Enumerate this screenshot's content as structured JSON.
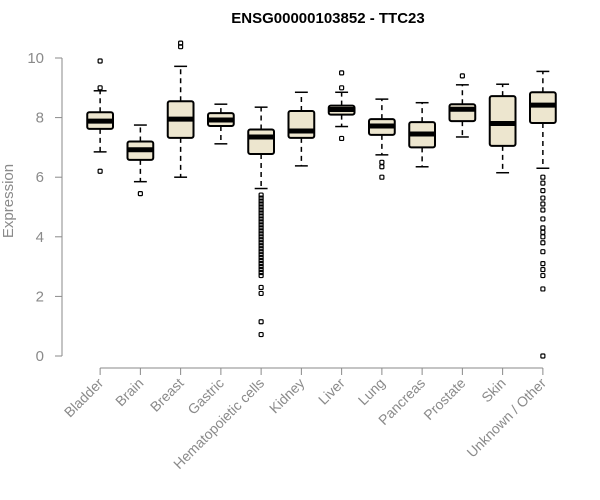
{
  "chart_data": {
    "type": "boxplot",
    "title": "ENSG00000103852 - TTC23",
    "xlabel": "",
    "ylabel": "Expression",
    "ylim": [
      0,
      10
    ],
    "yticks": [
      0,
      2,
      4,
      6,
      8,
      10
    ],
    "categories": [
      "Bladder",
      "Brain",
      "Breast",
      "Gastric",
      "Hematopoietic cells",
      "Kidney",
      "Liver",
      "Lung",
      "Pancreas",
      "Prostate",
      "Skin",
      "Unknown / Other"
    ],
    "boxes": [
      {
        "name": "Bladder",
        "min": 6.85,
        "q1": 7.62,
        "median": 7.88,
        "q3": 8.18,
        "max": 8.9,
        "outliers": [
          9.9,
          9.0,
          6.2
        ]
      },
      {
        "name": "Brain",
        "min": 5.85,
        "q1": 6.58,
        "median": 6.92,
        "q3": 7.2,
        "max": 7.75,
        "outliers": [
          5.45
        ]
      },
      {
        "name": "Breast",
        "min": 6.0,
        "q1": 7.32,
        "median": 7.95,
        "q3": 8.55,
        "max": 9.72,
        "outliers": [
          10.5,
          10.38
        ]
      },
      {
        "name": "Gastric",
        "min": 7.12,
        "q1": 7.72,
        "median": 7.92,
        "q3": 8.15,
        "max": 8.45,
        "outliers": []
      },
      {
        "name": "Hematopoietic cells",
        "min": 5.62,
        "q1": 6.78,
        "median": 7.35,
        "q3": 7.6,
        "max": 8.35,
        "outliers": [
          5.4,
          5.3,
          5.2,
          5.1,
          5.0,
          4.9,
          4.8,
          4.7,
          4.6,
          4.5,
          4.4,
          4.3,
          4.2,
          4.1,
          4.0,
          3.9,
          3.8,
          3.7,
          3.6,
          3.5,
          3.4,
          3.3,
          3.2,
          3.1,
          3.0,
          2.9,
          2.8,
          2.7,
          2.3,
          2.1,
          1.15,
          0.72
        ]
      },
      {
        "name": "Kidney",
        "min": 6.38,
        "q1": 7.32,
        "median": 7.55,
        "q3": 8.22,
        "max": 8.85,
        "outliers": []
      },
      {
        "name": "Liver",
        "min": 7.7,
        "q1": 8.1,
        "median": 8.27,
        "q3": 8.4,
        "max": 8.85,
        "outliers": [
          9.5,
          9.0,
          7.3
        ]
      },
      {
        "name": "Lung",
        "min": 6.75,
        "q1": 7.42,
        "median": 7.72,
        "q3": 7.95,
        "max": 8.62,
        "outliers": [
          6.5,
          6.35,
          6.0
        ]
      },
      {
        "name": "Pancreas",
        "min": 6.35,
        "q1": 7.0,
        "median": 7.45,
        "q3": 7.85,
        "max": 8.5,
        "outliers": []
      },
      {
        "name": "Prostate",
        "min": 7.35,
        "q1": 7.88,
        "median": 8.28,
        "q3": 8.45,
        "max": 9.1,
        "outliers": [
          9.4
        ]
      },
      {
        "name": "Skin",
        "min": 6.15,
        "q1": 7.05,
        "median": 7.8,
        "q3": 8.72,
        "max": 9.12,
        "outliers": []
      },
      {
        "name": "Unknown / Other",
        "min": 6.3,
        "q1": 7.82,
        "median": 8.42,
        "q3": 8.85,
        "max": 9.55,
        "outliers": [
          6.0,
          5.8,
          5.55,
          5.3,
          5.1,
          4.9,
          4.6,
          4.3,
          4.15,
          4.0,
          3.8,
          3.5,
          3.1,
          2.9,
          2.7,
          2.25,
          0.0
        ]
      }
    ]
  }
}
